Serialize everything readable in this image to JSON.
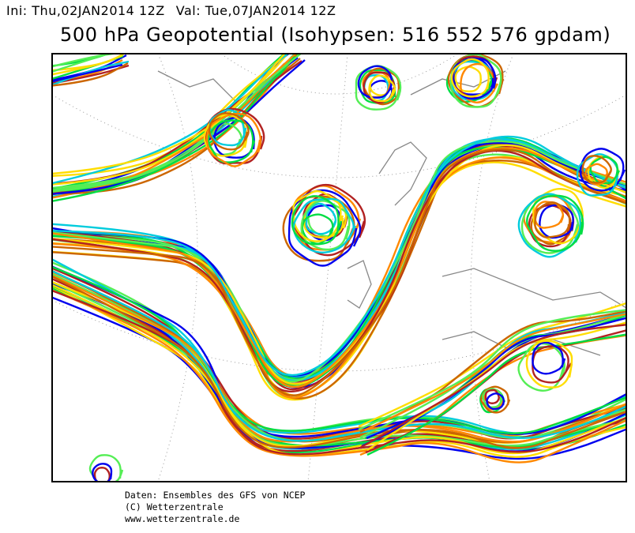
{
  "header": {
    "init": "Ini: Thu,02JAN2014 12Z",
    "valid": "Val: Tue,07JAN2014 12Z",
    "title": "500 hPa Geopotential (Isohypsen: 516 552 576 gpdam)"
  },
  "footer": {
    "lines": [
      "Daten: Ensembles des GFS von NCEP",
      "(C) Wetterzentrale",
      "www.wetterzentrale.de"
    ]
  }
}
